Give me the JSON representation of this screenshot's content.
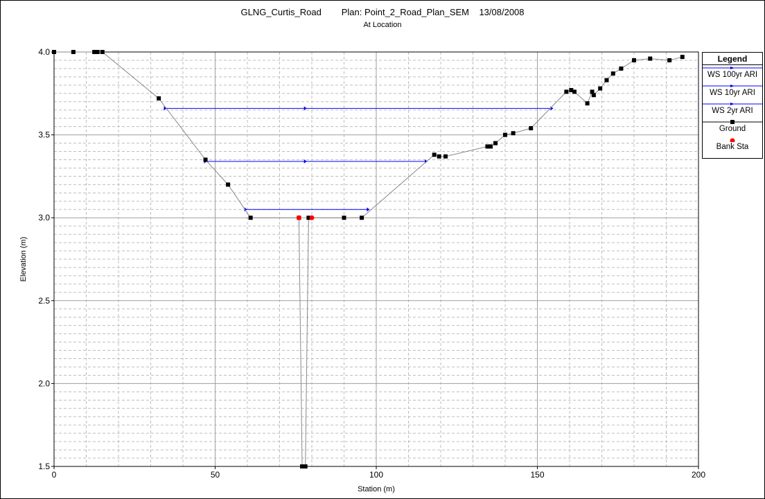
{
  "title": {
    "project": "GLNG_Curtis_Road",
    "plan": "Plan: Point_2_Road_Plan_SEM",
    "date": "13/08/2008",
    "subtitle": "At Location"
  },
  "chart_data": {
    "type": "line",
    "xlabel": "Station (m)",
    "ylabel": "Elevation (m)",
    "xlim": [
      0,
      200
    ],
    "ylim": [
      1.5,
      4.0
    ],
    "x_ticks": [
      0,
      50,
      100,
      150,
      200
    ],
    "y_ticks": [
      1.5,
      2.0,
      2.5,
      3.0,
      3.5,
      4.0
    ],
    "y_tick_labels": [
      "1.5",
      "2.0",
      "2.5",
      "3.0",
      "3.5",
      "4.0"
    ],
    "grid": true,
    "legend_position": "right",
    "legend_title": "Legend",
    "series": [
      {
        "name": "WS 100yr ARI",
        "kind": "water_surface",
        "color": "#0000ff",
        "marker": "small-arrow",
        "x": [
          34.5,
          78.0,
          154.5
        ],
        "y": [
          3.66,
          3.66,
          3.66
        ]
      },
      {
        "name": "WS 10yr ARI",
        "kind": "water_surface",
        "color": "#0000ff",
        "marker": "small-arrow",
        "x": [
          47.0,
          78.0,
          115.5
        ],
        "y": [
          3.34,
          3.34,
          3.34
        ]
      },
      {
        "name": "WS 2yr ARI",
        "kind": "water_surface",
        "color": "#0000ff",
        "marker": "small-arrow",
        "x": [
          59.5,
          97.5
        ],
        "y": [
          3.05,
          3.05
        ]
      },
      {
        "name": "Ground",
        "kind": "ground",
        "color": "#000000",
        "line_color": "#888888",
        "marker": "square",
        "x": [
          0,
          6,
          12.5,
          13.5,
          15,
          32.5,
          47,
          54,
          61,
          76,
          77,
          78,
          79,
          90,
          95.5,
          118,
          119.5,
          121.5,
          134.5,
          135.5,
          137,
          140,
          142.5,
          148,
          159,
          160.5,
          161.5,
          165.5,
          167,
          167.5,
          169.5,
          171.5,
          173.5,
          176,
          180,
          185,
          191,
          195
        ],
        "y": [
          4.0,
          4.0,
          4.0,
          4.0,
          4.0,
          3.72,
          3.35,
          3.2,
          3.0,
          3.0,
          1.5,
          1.5,
          3.0,
          3.0,
          3.0,
          3.38,
          3.37,
          3.37,
          3.43,
          3.43,
          3.45,
          3.5,
          3.51,
          3.54,
          3.76,
          3.77,
          3.76,
          3.69,
          3.76,
          3.74,
          3.78,
          3.83,
          3.87,
          3.9,
          3.95,
          3.96,
          3.95,
          3.97
        ]
      },
      {
        "name": "Bank Sta",
        "kind": "bank_station",
        "color": "#ff0000",
        "marker": "circle",
        "x": [
          76,
          80
        ],
        "y": [
          3.0,
          3.0
        ]
      }
    ]
  }
}
